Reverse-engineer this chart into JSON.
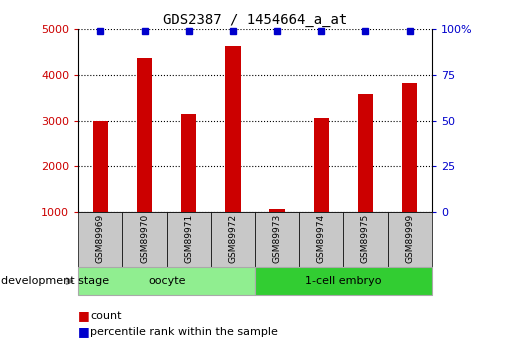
{
  "title": "GDS2387 / 1454664_a_at",
  "samples": [
    "GSM89969",
    "GSM89970",
    "GSM89971",
    "GSM89972",
    "GSM89973",
    "GSM89974",
    "GSM89975",
    "GSM89999"
  ],
  "counts": [
    3000,
    4380,
    3150,
    4630,
    1080,
    3050,
    3580,
    3820
  ],
  "percentile_ranks": [
    99,
    99,
    99,
    99,
    99,
    99,
    99,
    99
  ],
  "groups": [
    {
      "label": "oocyte",
      "start": 0,
      "end": 4,
      "color": "#90ee90"
    },
    {
      "label": "1-cell embryo",
      "start": 4,
      "end": 8,
      "color": "#32cd32"
    }
  ],
  "ylim_left": [
    1000,
    5000
  ],
  "ylim_right": [
    0,
    100
  ],
  "yticks_left": [
    1000,
    2000,
    3000,
    4000,
    5000
  ],
  "yticks_right": [
    0,
    25,
    50,
    75,
    100
  ],
  "bar_color": "#cc0000",
  "dot_color": "#0000cc",
  "left_tick_color": "#cc0000",
  "right_tick_color": "#0000cc",
  "grid_color": "black",
  "label_box_color": "#c8c8c8",
  "oocyte_color": "#90ee90",
  "embryo_color": "#32cd32",
  "legend_count_label": "count",
  "legend_percentile_label": "percentile rank within the sample",
  "dev_stage_label": "development stage",
  "bar_width": 0.35
}
